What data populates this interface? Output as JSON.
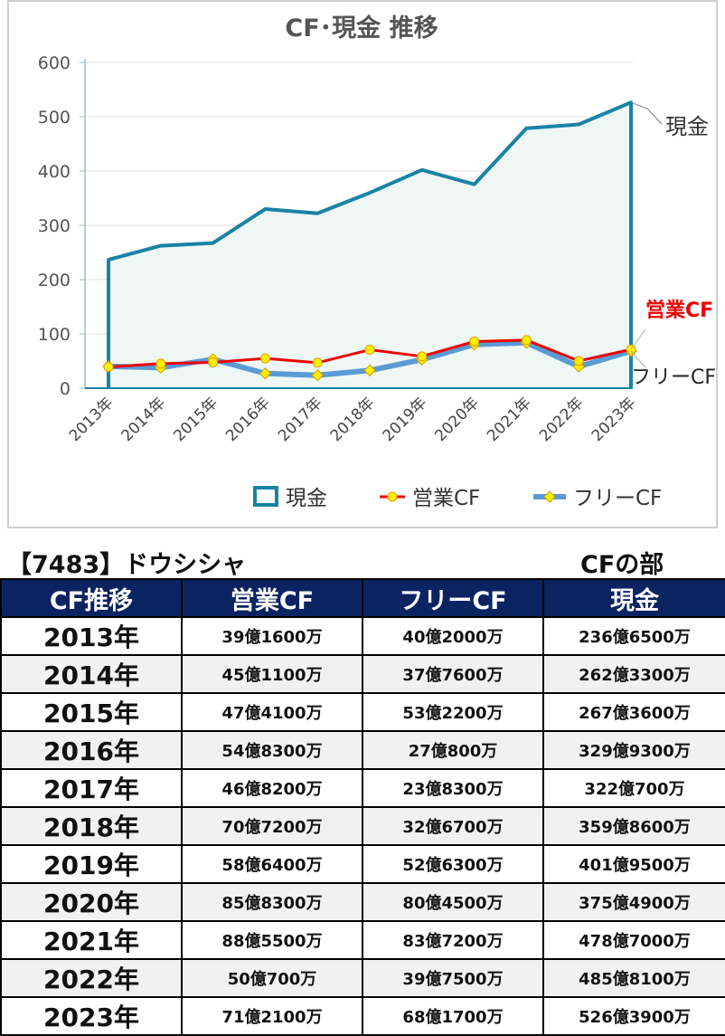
{
  "chart_data": {
    "type": "line",
    "title": "CF･現金 推移",
    "categories": [
      "2013年",
      "2014年",
      "2015年",
      "2016年",
      "2017年",
      "2018年",
      "2019年",
      "2020年",
      "2021年",
      "2022年",
      "2023年"
    ],
    "ylim": [
      0,
      600
    ],
    "yticks": [
      0,
      100,
      200,
      300,
      400,
      500,
      600
    ],
    "grid": true,
    "legend_position": "bottom",
    "series": [
      {
        "name": "現金",
        "style": "area",
        "color": "#1a83a3",
        "fill": "#eef7f4",
        "values": [
          236.65,
          262.33,
          267.36,
          329.93,
          322.07,
          359.86,
          401.95,
          375.49,
          478.7,
          485.81,
          526.39
        ]
      },
      {
        "name": "営業CF",
        "style": "line",
        "color": "#ee0000",
        "marker_color": "#ffee00",
        "values": [
          39.16,
          45.11,
          47.41,
          54.83,
          46.82,
          70.72,
          58.64,
          85.83,
          88.55,
          50.07,
          71.21
        ]
      },
      {
        "name": "フリーCF",
        "style": "line",
        "color": "#5b9bd5",
        "marker_color": "#ffee00",
        "values": [
          40.2,
          37.76,
          53.22,
          27.08,
          23.83,
          32.67,
          52.63,
          80.45,
          83.72,
          39.75,
          68.17
        ]
      }
    ],
    "end_labels": [
      "現金",
      "営業CF",
      "フリーCF"
    ]
  },
  "header": {
    "company": "【7483】ドウシシャ",
    "section": "CFの部"
  },
  "table": {
    "columns": [
      "CF推移",
      "営業CF",
      "フリーCF",
      "現金"
    ],
    "rows": [
      [
        "2013年",
        "39億1600万",
        "40億2000万",
        "236億6500万"
      ],
      [
        "2014年",
        "45億1100万",
        "37億7600万",
        "262億3300万"
      ],
      [
        "2015年",
        "47億4100万",
        "53億2200万",
        "267億3600万"
      ],
      [
        "2016年",
        "54億8300万",
        "27億800万",
        "329億9300万"
      ],
      [
        "2017年",
        "46億8200万",
        "23億8300万",
        "322億700万"
      ],
      [
        "2018年",
        "70億7200万",
        "32億6700万",
        "359億8600万"
      ],
      [
        "2019年",
        "58億6400万",
        "52億6300万",
        "401億9500万"
      ],
      [
        "2020年",
        "85億8300万",
        "80億4500万",
        "375億4900万"
      ],
      [
        "2021年",
        "88億5500万",
        "83億7200万",
        "478億7000万"
      ],
      [
        "2022年",
        "50億700万",
        "39億7500万",
        "485億8100万"
      ],
      [
        "2023年",
        "71億2100万",
        "68億1700万",
        "526億3900万"
      ]
    ]
  }
}
